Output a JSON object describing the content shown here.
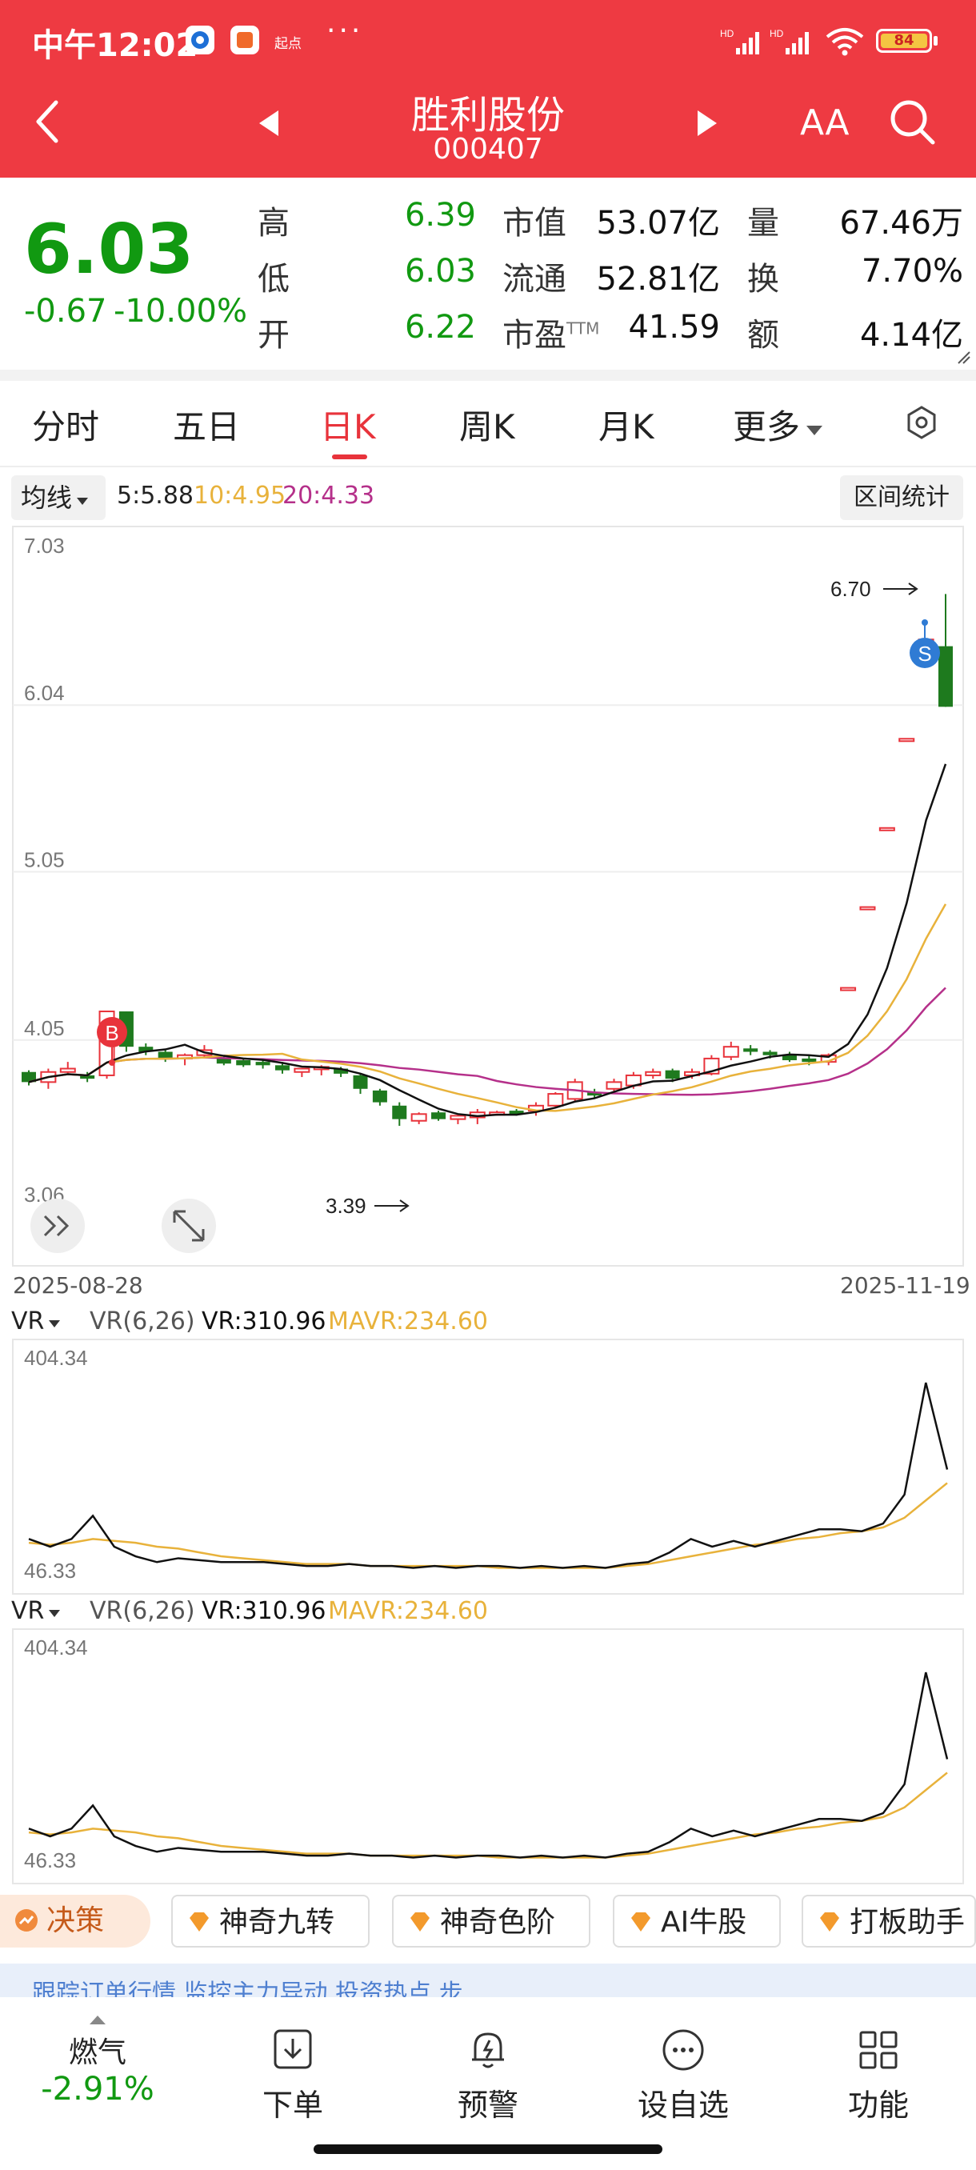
{
  "status_bar": {
    "time": "中午12:02",
    "app_badge": "起点",
    "more": "···",
    "battery": "84",
    "network_1": "HD",
    "network_2": "HD"
  },
  "nav": {
    "title": "胜利股份",
    "code": "000407",
    "font_size_label": "AA"
  },
  "quote": {
    "price": "6.03",
    "change_abs": "-0.67",
    "change_pct": "-10.00%",
    "high_label": "高",
    "high": "6.39",
    "low_label": "低",
    "low": "6.03",
    "open_label": "开",
    "open": "6.22",
    "mktcap_label": "市值",
    "mktcap": "53.07亿",
    "float_label": "流通",
    "float": "52.81亿",
    "pe_label": "市盈",
    "pe_suffix": "TTM",
    "pe": "41.59",
    "vol_label": "量",
    "vol": "67.46万",
    "turnover_label": "换",
    "turnover": "7.70%",
    "amount_label": "额",
    "amount": "4.14亿"
  },
  "tabs": [
    "分时",
    "五日",
    "日K",
    "周K",
    "月K",
    "更多"
  ],
  "chart": {
    "ma_button": "均线",
    "ma5": "5:5.88",
    "ma10": "10:4.95",
    "ma20": "20:4.33",
    "range_button": "区间统计",
    "y_ticks": [
      "7.03",
      "6.04",
      "5.05",
      "4.05",
      "3.06"
    ],
    "high_annotation": "6.70",
    "low_annotation": "3.39",
    "buy_marker": "B",
    "sell_marker": "S",
    "date_start": "2025-08-28",
    "date_end": "2025-11-19",
    "colors": {
      "up": "#e8333b",
      "down": "#1e7a1e",
      "ma5": "#111111",
      "ma10": "#e8b23b",
      "ma20": "#b5308a"
    }
  },
  "indicators": [
    {
      "selector": "VR",
      "params": "VR(6,26)",
      "vr": "VR:310.96",
      "mavr": "MAVR:234.60",
      "max": "404.34",
      "min": "46.33"
    },
    {
      "selector": "VR",
      "params": "VR(6,26)",
      "vr": "VR:310.96",
      "mavr": "MAVR:234.60",
      "max": "404.34",
      "min": "46.33"
    }
  ],
  "tools": [
    "决策",
    "神奇九转",
    "神奇色阶",
    "AI牛股",
    "打板助手"
  ],
  "ticker": "跟踪订单行情   监控主力异动   投资热点   步...",
  "bottom_nav": [
    {
      "label": "下单"
    },
    {
      "label": "预警"
    },
    {
      "label": "设自选"
    },
    {
      "label": "功能"
    }
  ],
  "sentiment": {
    "label": "燃气",
    "value": "-2.91%"
  }
}
